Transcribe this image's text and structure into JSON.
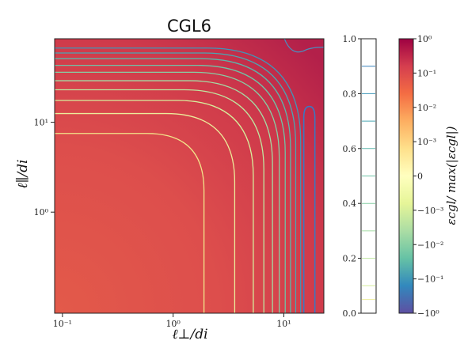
{
  "chart_data": {
    "type": "heatmap",
    "title": "CGL6",
    "xlabel": "ℓ⊥/di",
    "ylabel": "ℓ∥/di",
    "x_scale": "log",
    "y_scale": "log",
    "xlim": [
      0.085,
      23
    ],
    "ylim": [
      0.075,
      85
    ],
    "x_ticks": [
      {
        "value": 0.1,
        "label": "10⁻¹"
      },
      {
        "value": 1,
        "label": "10⁰"
      },
      {
        "value": 10,
        "label": "10¹"
      }
    ],
    "y_ticks": [
      {
        "value": 1,
        "label": "10⁰"
      },
      {
        "value": 10,
        "label": "10¹"
      }
    ],
    "contour_levels": [
      0.0,
      0.05,
      0.1,
      0.15,
      0.2,
      0.3,
      0.4,
      0.5,
      0.6,
      0.7,
      0.8,
      0.9
    ],
    "contour_colors": [
      "#f2e58a",
      "#ecec9a",
      "#d6ee9c",
      "#bfe6a0",
      "#a4dba4",
      "#86cea4",
      "#6fc3a6",
      "#5bb5aa",
      "#4aa6b2",
      "#3f96b8",
      "#3a84bd",
      "#3a6fba"
    ],
    "vertical_contour_x": [
      1.9,
      3.6,
      5.3,
      6.6,
      7.9,
      9.1,
      10.3,
      11.5,
      12.8,
      14.2
    ],
    "horizontal_contour_y": [
      7.5,
      12.5,
      17.5,
      23,
      29,
      36,
      43,
      51,
      59,
      67
    ],
    "levels_axis": {
      "ticks": [
        {
          "value": 0.0,
          "label": "0.0"
        },
        {
          "value": 0.2,
          "label": "0.2"
        },
        {
          "value": 0.4,
          "label": "0.4"
        },
        {
          "value": 0.6,
          "label": "0.6"
        },
        {
          "value": 0.8,
          "label": "0.8"
        },
        {
          "value": 1.0,
          "label": "1.0"
        }
      ],
      "lines": [
        0.05,
        0.1,
        0.2,
        0.3,
        0.4,
        0.5,
        0.6,
        0.7,
        0.8,
        0.9
      ]
    },
    "colorbar": {
      "label": "εcgl/ max(|εcgl|)",
      "tick_labels": [
        "10⁰",
        "10⁻¹",
        "10⁻²",
        "10⁻³",
        "0",
        "−10⁻³",
        "−10⁻²",
        "−10⁻¹",
        "−10⁰"
      ],
      "colors": [
        "#9e0142",
        "#d53e4f",
        "#f46d43",
        "#fdae61",
        "#fee08b",
        "#ffffbf",
        "#e6f598",
        "#abdda4",
        "#66c2a5",
        "#3288bd",
        "#5e4fa2"
      ]
    }
  }
}
